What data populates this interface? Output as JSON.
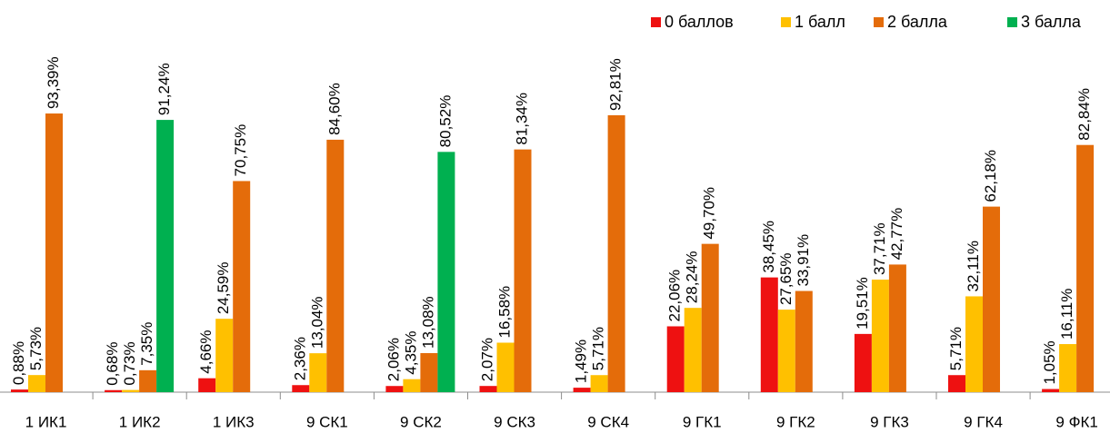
{
  "chart_data": {
    "type": "bar",
    "categories": [
      "1 ИК1",
      "1 ИК2",
      "1 ИК3",
      "9 СК1",
      "9 СК2",
      "9 СК3",
      "9 СК4",
      "9 ГК1",
      "9 ГК2",
      "9 ГК3",
      "9 ГК4",
      "9 ФК1"
    ],
    "series": [
      {
        "name": "0 баллов",
        "color": "#ee1111",
        "values": [
          0.88,
          0.68,
          4.66,
          2.36,
          2.06,
          2.07,
          1.49,
          22.06,
          38.45,
          19.51,
          5.71,
          1.05
        ],
        "value_labels": [
          "0,88%",
          "0,68%",
          "4,66%",
          "2,36%",
          "2,06%",
          "2,07%",
          "1,49%",
          "22,06%",
          "38,45%",
          "19,51%",
          "5,71%",
          "1,05%"
        ]
      },
      {
        "name": "1 балл",
        "color": "#ffc000",
        "values": [
          5.73,
          0.73,
          24.59,
          13.04,
          4.35,
          16.58,
          5.71,
          28.24,
          27.65,
          37.71,
          32.11,
          16.11
        ],
        "value_labels": [
          "5,73%",
          "0,73%",
          "24,59%",
          "13,04%",
          "4,35%",
          "16,58%",
          "5,71%",
          "28,24%",
          "27,65%",
          "37,71%",
          "32,11%",
          "16,11%"
        ]
      },
      {
        "name": "2 балла",
        "color": "#e46c0a",
        "values": [
          93.39,
          7.35,
          70.75,
          84.6,
          13.08,
          81.34,
          92.81,
          49.7,
          33.91,
          42.77,
          62.18,
          82.84
        ],
        "value_labels": [
          "93,39%",
          "7,35%",
          "70,75%",
          "84,60%",
          "13,08%",
          "81,34%",
          "92,81%",
          "49,70%",
          "33,91%",
          "42,77%",
          "62,18%",
          "82,84%"
        ]
      },
      {
        "name": "3 балла",
        "color": "#00b050",
        "values": [
          null,
          91.24,
          null,
          null,
          80.52,
          null,
          null,
          null,
          null,
          null,
          null,
          null
        ],
        "value_labels": [
          null,
          "91,24%",
          null,
          null,
          "80,52%",
          null,
          null,
          null,
          null,
          null,
          null,
          null
        ]
      }
    ]
  }
}
